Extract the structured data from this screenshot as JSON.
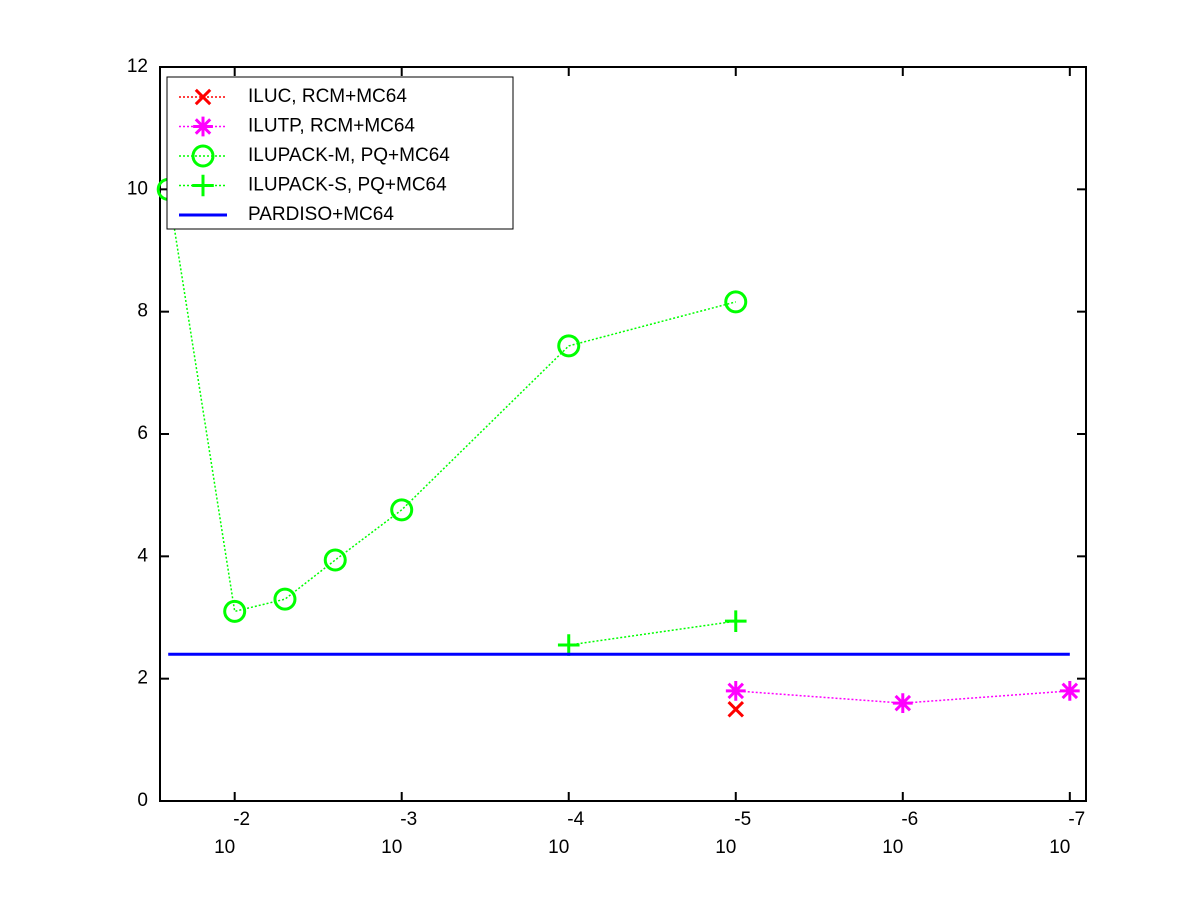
{
  "chart_data": {
    "type": "line",
    "xscale": "log",
    "xreversed": true,
    "xlim": [
      0.028,
      8e-08
    ],
    "xticks": [
      {
        "value": 0.01,
        "label": "10",
        "exponent": "-2"
      },
      {
        "value": 0.001,
        "label": "10",
        "exponent": "-3"
      },
      {
        "value": 0.0001,
        "label": "10",
        "exponent": "-4"
      },
      {
        "value": 1e-05,
        "label": "10",
        "exponent": "-5"
      },
      {
        "value": 1e-06,
        "label": "10",
        "exponent": "-6"
      },
      {
        "value": 1e-07,
        "label": "10",
        "exponent": "-7"
      }
    ],
    "ylim": [
      0,
      12
    ],
    "yticks": [
      0,
      2,
      4,
      6,
      8,
      10,
      12
    ],
    "grid": false,
    "legend": "upper left",
    "series": [
      {
        "name": "ILUC, RCM+MC64",
        "color": "#ff0000",
        "marker": "x",
        "linestyle": "dotted",
        "x": [
          1e-05
        ],
        "values": [
          1.5
        ]
      },
      {
        "name": "ILUTP, RCM+MC64",
        "color": "#ff00ff",
        "marker": "asterisk",
        "linestyle": "dotted",
        "x": [
          1e-05,
          1e-06,
          1e-07
        ],
        "values": [
          1.8,
          1.6,
          1.8
        ]
      },
      {
        "name": "ILUPACK-M, PQ+MC64",
        "color": "#00ff00",
        "marker": "circle",
        "linestyle": "dotted",
        "x": [
          0.025,
          0.01,
          0.005,
          0.0025,
          0.001,
          0.0001,
          1e-05
        ],
        "values": [
          10.0,
          3.1,
          3.3,
          3.94,
          4.76,
          7.44,
          8.16
        ]
      },
      {
        "name": "ILUPACK-S, PQ+MC64",
        "color": "#00ff00",
        "marker": "plus",
        "linestyle": "dotted",
        "x": [
          0.0001,
          1e-05
        ],
        "values": [
          2.55,
          2.94
        ]
      },
      {
        "name": "PARDISO+MC64",
        "color": "#0000ff",
        "marker": "none",
        "linestyle": "solid",
        "x": [
          0.025,
          1e-07
        ],
        "values": [
          2.4,
          2.4
        ]
      }
    ]
  }
}
